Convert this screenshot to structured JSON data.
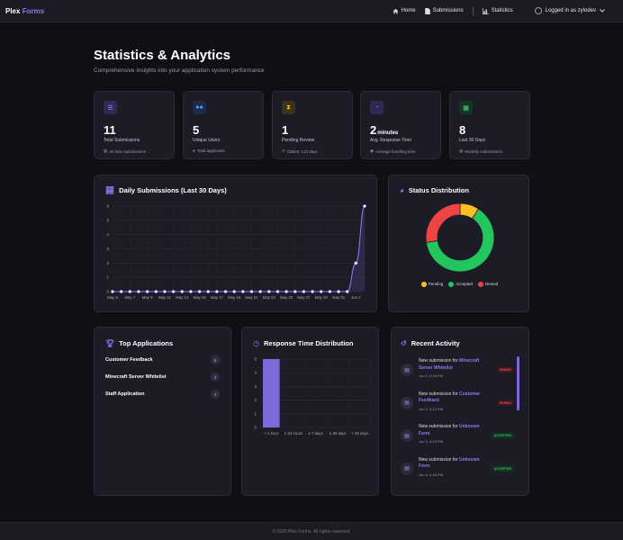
{
  "nav": {
    "brand_main": "Plex",
    "brand_accent": "Forms",
    "links": [
      {
        "label": "Home",
        "icon": "home-icon"
      },
      {
        "label": "Submissions",
        "icon": "file-icon"
      },
      {
        "label": "Statistics",
        "icon": "chart-bar-icon"
      }
    ],
    "user_label": "Logged in as zylodev"
  },
  "header": {
    "title": "Statistics & Analytics",
    "subtitle": "Comprehensive insights into your application system performance"
  },
  "stats": [
    {
      "value": "11",
      "unit": "",
      "label": "Total Submissions",
      "note": "All time submissions",
      "icon": "list-icon",
      "color": "#8c7cf0"
    },
    {
      "value": "5",
      "unit": "",
      "label": "Unique Users",
      "note": "Total applicants",
      "icon": "users-icon",
      "color": "#3b82f6"
    },
    {
      "value": "1",
      "unit": "",
      "label": "Pending Review",
      "note": "Oldest: 123 days",
      "icon": "hourglass-icon",
      "color": "#eab308"
    },
    {
      "value": "2",
      "unit": "minutes",
      "label": "Avg. Response Time",
      "note": "Average handling time",
      "icon": "stopwatch-icon",
      "color": "#8c7cf0"
    },
    {
      "value": "8",
      "unit": "",
      "label": "Last 30 Days",
      "note": "Monthly submissions",
      "icon": "calendar-icon",
      "color": "#22c55e"
    }
  ],
  "daily_panel": {
    "title": "Daily Submissions (Last 30 Days)"
  },
  "status_panel": {
    "title": "Status Distribution"
  },
  "top_apps": {
    "title": "Top Applications",
    "items": [
      {
        "name": "Customer Feedback",
        "count": "5"
      },
      {
        "name": "Minecraft Server Whitelist",
        "count": "3"
      },
      {
        "name": "Staff Application",
        "count": "3"
      }
    ]
  },
  "response_panel": {
    "title": "Response Time Distribution"
  },
  "recent": {
    "title": "Recent Activity",
    "prefix": "New submission for",
    "items": [
      {
        "form": "Minecraft Server Whitelist",
        "time": "Jun 3, 3:15 PM",
        "status": "DENIED"
      },
      {
        "form": "Customer Feedback",
        "time": "Jun 3, 4:23 PM",
        "status": "DENIED"
      },
      {
        "form": "Unknown Form",
        "time": "Jun 3, 4:23 PM",
        "status": "ACCEPTED"
      },
      {
        "form": "Unknown Form",
        "time": "Jun 3, 4:18 PM",
        "status": "ACCEPTED"
      }
    ]
  },
  "footer": {
    "text": "© 2025 Plex Forms. All rights reserved."
  },
  "chart_data": [
    {
      "type": "line",
      "title": "Daily Submissions (Last 30 Days)",
      "x": [
        "May 5",
        "May 6",
        "May 7",
        "May 8",
        "May 9",
        "May 10",
        "May 11",
        "May 12",
        "May 13",
        "May 14",
        "May 15",
        "May 16",
        "May 17",
        "May 18",
        "May 19",
        "May 20",
        "May 21",
        "May 22",
        "May 23",
        "May 24",
        "May 25",
        "May 26",
        "May 27",
        "May 28",
        "May 29",
        "May 30",
        "May 31",
        "Jun 1",
        "Jun 2",
        "Jun 3"
      ],
      "tick_labels": [
        "May 5",
        "May 7",
        "May 9",
        "May 11",
        "May 13",
        "May 15",
        "May 17",
        "May 19",
        "May 21",
        "May 23",
        "May 25",
        "May 27",
        "May 29",
        "May 31",
        "Jun 2"
      ],
      "values": [
        0,
        0,
        0,
        0,
        0,
        0,
        0,
        0,
        0,
        0,
        0,
        0,
        0,
        0,
        0,
        0,
        0,
        0,
        0,
        0,
        0,
        0,
        0,
        0,
        0,
        0,
        0,
        0,
        2,
        6
      ],
      "y_ticks": [
        0,
        1,
        2,
        3,
        4,
        5,
        6
      ],
      "ylim": [
        0,
        6
      ],
      "grid": true,
      "color": "#8c7cf0"
    },
    {
      "type": "pie",
      "title": "Status Distribution",
      "labels": [
        "Pending",
        "Accepted",
        "Denied"
      ],
      "values": [
        1,
        7,
        3
      ],
      "colors": [
        "#fbbf24",
        "#22c55e",
        "#ef4444"
      ],
      "legend": "bottom"
    },
    {
      "type": "bar",
      "title": "Response Time Distribution",
      "categories": [
        "< 1 hour",
        "1-24 hours",
        "1-7 days",
        "1-30 days",
        "> 30 days"
      ],
      "values": [
        5,
        0,
        0,
        0,
        0
      ],
      "y_ticks": [
        0,
        1,
        2,
        3,
        4,
        5
      ],
      "ylim": [
        0,
        5
      ],
      "grid": true,
      "color": "#7c6ad8"
    }
  ]
}
